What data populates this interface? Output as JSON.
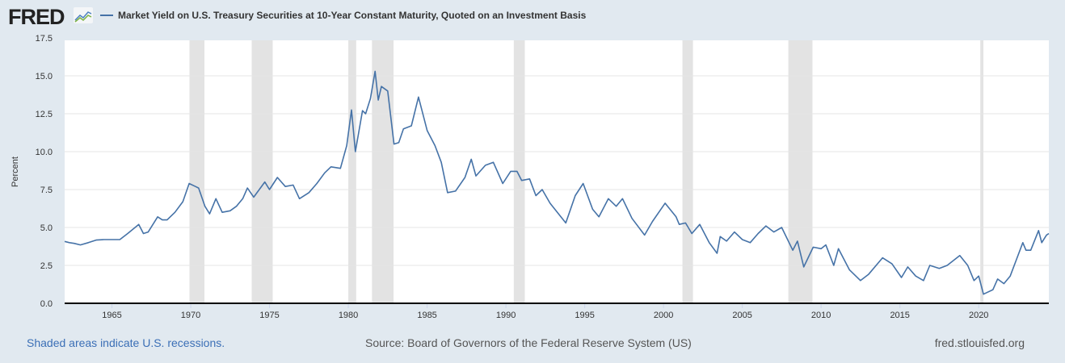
{
  "logo": "FRED",
  "chart_data": {
    "type": "line",
    "title": "",
    "ylabel": "Percent",
    "xlabel": "",
    "ylim": [
      0,
      17.5
    ],
    "xlim": [
      1962.0,
      2024.45
    ],
    "yticks": [
      "0.0",
      "2.5",
      "5.0",
      "7.5",
      "10.0",
      "12.5",
      "15.0",
      "17.5"
    ],
    "xticks": [
      "1965",
      "1970",
      "1975",
      "1980",
      "1985",
      "1990",
      "1995",
      "2000",
      "2005",
      "2010",
      "2015",
      "2020"
    ],
    "grid": true,
    "legend_position": "top",
    "series": [
      {
        "name": "Market Yield on U.S. Treasury Securities at 10-Year Constant Maturity, Quoted on an Investment Basis",
        "color": "#4572a7",
        "x": [
          1962.0,
          1962.3,
          1962.6,
          1963.0,
          1963.5,
          1964.0,
          1964.5,
          1965.0,
          1965.5,
          1966.0,
          1966.7,
          1967.0,
          1967.3,
          1967.9,
          1968.2,
          1968.5,
          1969.0,
          1969.5,
          1969.9,
          1970.3,
          1970.5,
          1970.9,
          1971.2,
          1971.6,
          1972.0,
          1972.5,
          1972.9,
          1973.3,
          1973.6,
          1974.0,
          1974.7,
          1975.0,
          1975.5,
          1976.0,
          1976.5,
          1976.9,
          1977.5,
          1978.0,
          1978.5,
          1978.9,
          1979.5,
          1979.9,
          1980.2,
          1980.45,
          1980.9,
          1981.1,
          1981.4,
          1981.7,
          1981.9,
          1982.1,
          1982.5,
          1982.9,
          1983.2,
          1983.5,
          1984.0,
          1984.45,
          1984.8,
          1985.0,
          1985.5,
          1985.9,
          1986.3,
          1986.8,
          1987.4,
          1987.8,
          1988.1,
          1988.7,
          1989.2,
          1989.8,
          1990.3,
          1990.7,
          1991.0,
          1991.5,
          1991.9,
          1992.3,
          1992.8,
          1993.8,
          1994.4,
          1994.9,
          1995.5,
          1995.9,
          1996.5,
          1997.0,
          1997.4,
          1998.0,
          1998.8,
          1999.3,
          1999.9,
          2000.1,
          2000.8,
          2001.0,
          2001.4,
          2001.8,
          2002.3,
          2002.9,
          2003.4,
          2003.6,
          2004.0,
          2004.5,
          2005.0,
          2005.5,
          2006.0,
          2006.5,
          2007.0,
          2007.5,
          2008.2,
          2008.5,
          2008.9,
          2009.5,
          2010.0,
          2010.3,
          2010.8,
          2011.1,
          2011.8,
          2012.5,
          2013.0,
          2013.9,
          2014.5,
          2015.1,
          2015.5,
          2016.0,
          2016.5,
          2016.9,
          2017.5,
          2018.0,
          2018.8,
          2019.3,
          2019.7,
          2020.0,
          2020.3,
          2020.5,
          2020.9,
          2021.2,
          2021.6,
          2022.0,
          2022.4,
          2022.8,
          2023.0,
          2023.3,
          2023.8,
          2024.0,
          2024.3,
          2024.45
        ],
        "y": [
          4.08,
          4.0,
          3.95,
          3.85,
          4.0,
          4.17,
          4.2,
          4.2,
          4.2,
          4.6,
          5.2,
          4.6,
          4.7,
          5.7,
          5.5,
          5.5,
          6.0,
          6.7,
          7.9,
          7.7,
          7.6,
          6.4,
          5.9,
          6.9,
          6.0,
          6.1,
          6.4,
          6.9,
          7.6,
          7.0,
          8.0,
          7.5,
          8.3,
          7.7,
          7.8,
          6.9,
          7.3,
          7.9,
          8.6,
          9.0,
          8.9,
          10.4,
          12.75,
          10.0,
          12.7,
          12.5,
          13.5,
          15.3,
          13.4,
          14.3,
          14.0,
          10.5,
          10.6,
          11.5,
          11.7,
          13.6,
          12.2,
          11.4,
          10.4,
          9.3,
          7.3,
          7.4,
          8.3,
          9.5,
          8.4,
          9.1,
          9.3,
          7.9,
          8.7,
          8.7,
          8.1,
          8.2,
          7.1,
          7.5,
          6.6,
          5.3,
          7.1,
          7.9,
          6.2,
          5.7,
          6.9,
          6.4,
          6.9,
          5.6,
          4.5,
          5.4,
          6.3,
          6.6,
          5.7,
          5.2,
          5.3,
          4.6,
          5.2,
          4.0,
          3.3,
          4.4,
          4.1,
          4.7,
          4.2,
          4.0,
          4.6,
          5.1,
          4.7,
          5.0,
          3.5,
          4.1,
          2.4,
          3.7,
          3.6,
          3.85,
          2.5,
          3.6,
          2.2,
          1.5,
          1.9,
          3.0,
          2.6,
          1.7,
          2.4,
          1.8,
          1.5,
          2.5,
          2.3,
          2.5,
          3.15,
          2.5,
          1.5,
          1.8,
          0.6,
          0.7,
          0.9,
          1.6,
          1.3,
          1.8,
          2.9,
          4.0,
          3.5,
          3.5,
          4.8,
          4.0,
          4.5,
          4.6
        ]
      }
    ],
    "recessions": [
      [
        1969.92,
        1970.87
      ],
      [
        1973.87,
        1975.2
      ],
      [
        1980.0,
        1980.5
      ],
      [
        1981.5,
        1982.87
      ],
      [
        1990.5,
        1991.2
      ],
      [
        2001.2,
        2001.87
      ],
      [
        2007.92,
        2009.45
      ],
      [
        2020.1,
        2020.3
      ]
    ]
  },
  "footer": {
    "recessions_note": "Shaded areas indicate U.S. recessions.",
    "source": "Source: Board of Governors of the Federal Reserve System (US)",
    "site": "fred.stlouisfed.org"
  }
}
